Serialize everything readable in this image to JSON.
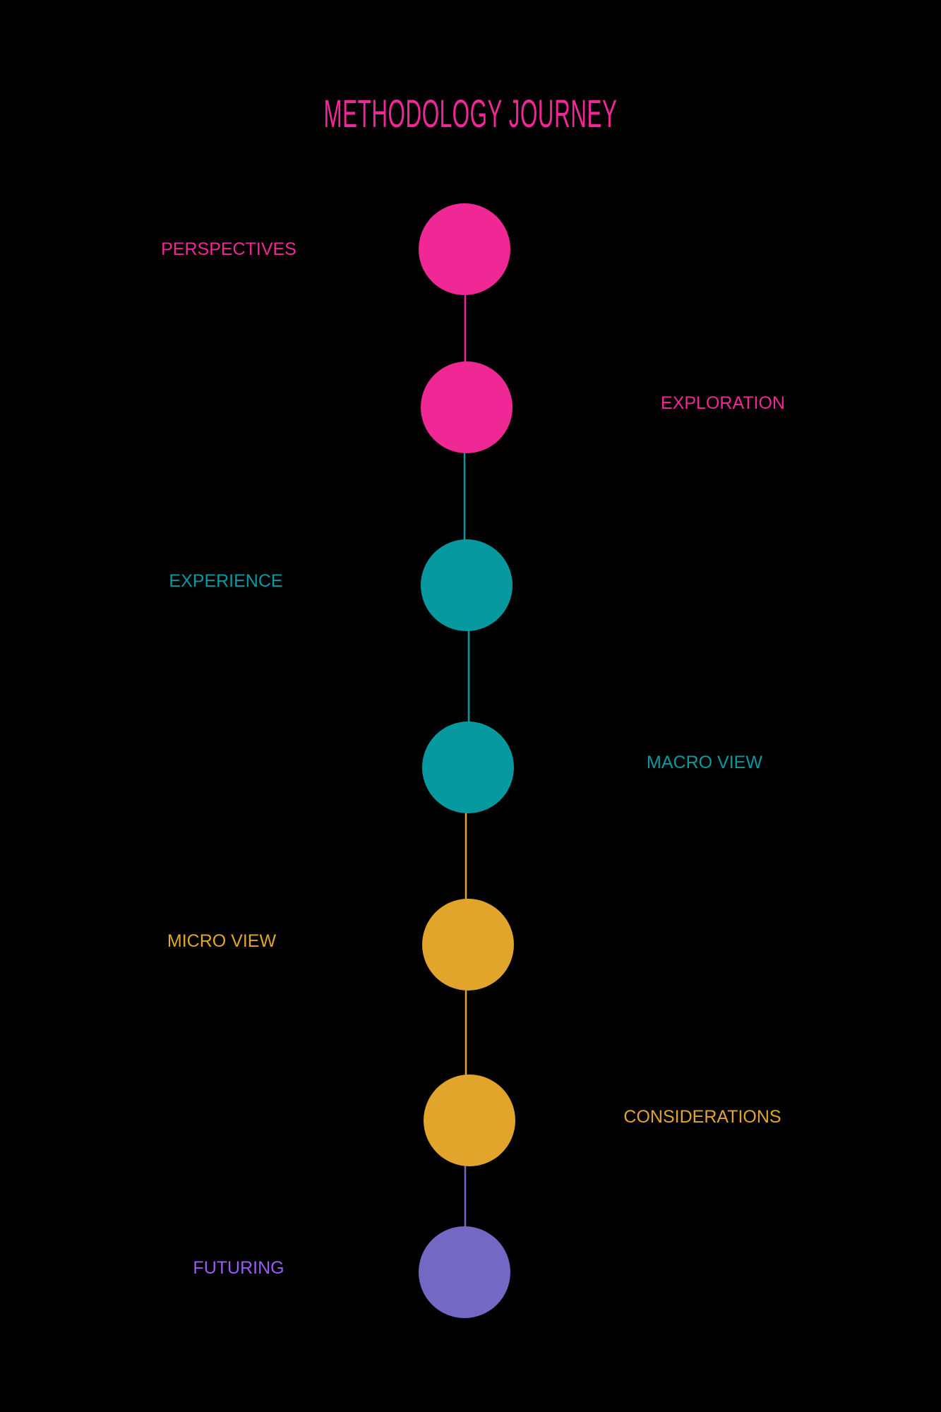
{
  "title": "METHODOLOGY JOURNEY",
  "colors": {
    "background": "#000000",
    "pink": "#F02896",
    "teal": "#069AA0",
    "gold": "#E0A52A",
    "purple": "#7369C4",
    "purple_label": "#9A5CF2"
  },
  "steps": [
    {
      "label": "PERSPECTIVES",
      "color": "#F02896",
      "label_color": "#F02896",
      "side": "left"
    },
    {
      "label": "EXPLORATION",
      "color": "#F02896",
      "label_color": "#F02896",
      "side": "right"
    },
    {
      "label": "EXPERIENCE",
      "color": "#069AA0",
      "label_color": "#069AA0",
      "side": "left"
    },
    {
      "label": "MACRO VIEW",
      "color": "#069AA0",
      "label_color": "#069AA0",
      "side": "right"
    },
    {
      "label": "MICRO VIEW",
      "color": "#E0A52A",
      "label_color": "#E0A52A",
      "side": "left"
    },
    {
      "label": "CONSIDERATIONS",
      "color": "#E0A52A",
      "label_color": "#E0A52A",
      "side": "right"
    },
    {
      "label": "FUTURING",
      "color": "#7369C4",
      "label_color": "#9A5CF2",
      "side": "left"
    }
  ],
  "connector_colors": [
    "#F02896",
    "#069AA0",
    "#069AA0",
    "#E0A52A",
    "#E0A52A",
    "#7369C4"
  ]
}
